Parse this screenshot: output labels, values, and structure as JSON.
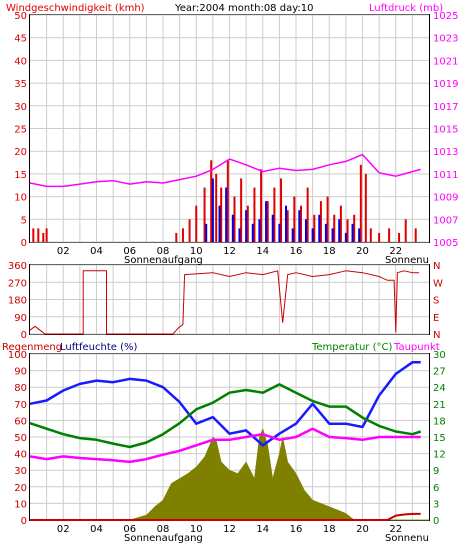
{
  "header": {
    "wind_label": "Windgeschwindigkeit (kmh)",
    "date_label": "Year:2004 month:08 day:10",
    "pressure_label": "Luftdruck (mb)"
  },
  "x_ticks": [
    "02",
    "04",
    "06",
    "08",
    "10",
    "12",
    "14",
    "16",
    "18",
    "20",
    "22"
  ],
  "sun_labels": {
    "sunrise": "Sonnenaufgang",
    "sunset": "Sonnenu"
  },
  "bottom_labels": {
    "rain": "Regenmeng",
    "humidity": "Luftfeuchte (%)",
    "temperature": "Temperatur (°C)",
    "dewpoint": "Taupunkt"
  },
  "colors": {
    "wind_speed": "#e00000",
    "wind_gust": "#0000e0",
    "pressure": "#ff00ff",
    "direction": "#cc0000",
    "humidity": "#1a1aff",
    "temperature": "#008000",
    "dewpoint": "#ff00ff",
    "rain_rate": "#808000",
    "rain_total": "#cc0000"
  },
  "chart_data": [
    {
      "type": "bar",
      "title": "Windgeschwindigkeit (kmh)",
      "xlim": [
        0,
        24
      ],
      "ylim": [
        0,
        50
      ],
      "y_ticks": [
        0,
        5,
        10,
        15,
        20,
        25,
        30,
        35,
        40,
        45,
        50
      ],
      "y2_label": "Luftdruck (mb)",
      "y2lim": [
        1005,
        1025
      ],
      "y2_ticks": [
        1005,
        1007,
        1009,
        1011,
        1013,
        1015,
        1017,
        1019,
        1021,
        1023,
        1025
      ],
      "series": [
        {
          "key": "wind_speed",
          "x": [
            0.2,
            0.5,
            0.8,
            1.0,
            8.8,
            9.2,
            9.6,
            10.0,
            10.5,
            10.9,
            11.2,
            11.5,
            11.9,
            12.3,
            12.7,
            13.1,
            13.5,
            13.9,
            14.3,
            14.7,
            15.1,
            15.5,
            15.9,
            16.3,
            16.7,
            17.1,
            17.5,
            17.9,
            18.3,
            18.7,
            19.1,
            19.5,
            19.9,
            20.2,
            20.5,
            21.0,
            21.6,
            22.2,
            22.6,
            23.2
          ],
          "values": [
            3,
            3,
            2,
            3,
            2,
            3,
            5,
            8,
            12,
            18,
            15,
            12,
            18,
            10,
            14,
            8,
            12,
            16,
            9,
            12,
            14,
            7,
            10,
            8,
            12,
            6,
            9,
            10,
            6,
            8,
            5,
            6,
            17,
            15,
            3,
            2,
            3,
            2,
            5,
            3
          ]
        },
        {
          "key": "wind_gust",
          "x": [
            10.6,
            11.0,
            11.4,
            11.8,
            12.2,
            12.6,
            13.0,
            13.4,
            13.8,
            14.2,
            14.6,
            15.0,
            15.4,
            15.8,
            16.2,
            16.6,
            17.0,
            17.4,
            17.8,
            18.2,
            18.6,
            19.0,
            19.4,
            19.8
          ],
          "values": [
            4,
            14,
            8,
            12,
            6,
            3,
            7,
            4,
            5,
            9,
            6,
            4,
            8,
            3,
            7,
            5,
            3,
            6,
            4,
            3,
            5,
            2,
            4,
            3
          ]
        },
        {
          "key": "pressure",
          "axis": "y2",
          "x": [
            0,
            1,
            2,
            3,
            4,
            5,
            6,
            7,
            8,
            9,
            10,
            11,
            12,
            13,
            14,
            15,
            16,
            17,
            18,
            19,
            20,
            21,
            22,
            23,
            23.5
          ],
          "values": [
            1010.2,
            1009.9,
            1009.9,
            1010.1,
            1010.3,
            1010.4,
            1010.1,
            1010.3,
            1010.2,
            1010.5,
            1010.8,
            1011.4,
            1012.3,
            1011.8,
            1011.2,
            1011.5,
            1011.3,
            1011.4,
            1011.8,
            1012.1,
            1012.7,
            1011.1,
            1010.8,
            1011.2,
            1011.4
          ]
        }
      ]
    },
    {
      "type": "line",
      "xlim": [
        0,
        24
      ],
      "ylim": [
        0,
        360
      ],
      "y_ticks": [
        0,
        90,
        180,
        270,
        360
      ],
      "y2_ticks": [
        "N",
        "E",
        "S",
        "W",
        "N"
      ],
      "series": [
        {
          "key": "direction",
          "x": [
            0,
            0.3,
            0.6,
            0.9,
            1.0,
            3.2,
            3.2,
            4.6,
            4.6,
            8.6,
            8.9,
            9.2,
            9.3,
            11.0,
            12.0,
            13.0,
            14.0,
            14.9,
            15.2,
            15.5,
            16.0,
            17.0,
            18.0,
            19.0,
            20.0,
            21.0,
            21.5,
            21.9,
            22.0,
            22.1,
            22.5,
            23.0,
            23.4
          ],
          "values": [
            20,
            40,
            20,
            0,
            0,
            0,
            330,
            330,
            0,
            0,
            30,
            50,
            310,
            320,
            300,
            320,
            310,
            330,
            60,
            310,
            320,
            300,
            310,
            330,
            320,
            300,
            280,
            280,
            10,
            320,
            330,
            320,
            320
          ]
        }
      ]
    },
    {
      "type": "line",
      "xlim": [
        0,
        24
      ],
      "ylim": [
        0,
        100
      ],
      "y_ticks": [
        0,
        10,
        20,
        30,
        40,
        50,
        60,
        70,
        80,
        90,
        100
      ],
      "y_tick_labels": [
        "0",
        "10",
        "20",
        "30",
        "40",
        "50",
        "60",
        "70",
        "80",
        "90",
        "100"
      ],
      "y2lim": [
        0,
        30
      ],
      "y2_ticks": [
        0,
        3,
        6,
        9,
        12,
        15,
        18,
        21,
        24,
        27,
        30
      ],
      "series": [
        {
          "key": "humidity",
          "x": [
            0,
            1,
            2,
            3,
            4,
            5,
            6,
            7,
            8,
            9,
            10,
            11,
            12,
            13,
            14,
            15,
            16,
            17,
            18,
            19,
            20,
            21,
            22,
            23,
            23.5
          ],
          "values": [
            70,
            72,
            78,
            82,
            84,
            83,
            85,
            84,
            80,
            71,
            58,
            62,
            52,
            54,
            45,
            52,
            58,
            70,
            58,
            58,
            56,
            75,
            88,
            95,
            95
          ]
        },
        {
          "key": "temperature",
          "axis": "y2",
          "x": [
            0,
            1,
            2,
            3,
            4,
            5,
            6,
            7,
            8,
            9,
            10,
            11,
            12,
            13,
            14,
            15,
            16,
            17,
            18,
            19,
            20,
            21,
            22,
            23,
            23.5
          ],
          "values": [
            17.5,
            16.5,
            15.5,
            14.8,
            14.5,
            13.8,
            13.2,
            14.0,
            15.5,
            17.5,
            20.0,
            21.2,
            23.0,
            23.5,
            23.0,
            24.5,
            23.0,
            21.5,
            20.5,
            20.5,
            18.5,
            17.0,
            16.0,
            15.5,
            16.0
          ]
        },
        {
          "key": "dewpoint",
          "axis": "y2",
          "x": [
            0,
            1,
            2,
            3,
            4,
            5,
            6,
            7,
            8,
            9,
            10,
            11,
            12,
            13,
            14,
            15,
            16,
            17,
            18,
            19,
            20,
            21,
            22,
            23,
            23.5
          ],
          "values": [
            11.5,
            11.0,
            11.5,
            11.2,
            11.0,
            10.8,
            10.5,
            11.0,
            11.8,
            12.5,
            13.5,
            14.5,
            14.5,
            15.0,
            15.5,
            14.5,
            15.0,
            16.5,
            15.0,
            14.8,
            14.5,
            15.0,
            15.0,
            15.0,
            15.0
          ]
        },
        {
          "key": "rain_rate",
          "type": "area",
          "x": [
            0,
            6.0,
            7.0,
            7.5,
            8.0,
            8.5,
            9.0,
            9.5,
            10.0,
            10.5,
            10.8,
            11.0,
            11.2,
            11.5,
            12.0,
            12.5,
            13.0,
            13.5,
            13.8,
            14.0,
            14.3,
            14.6,
            15.0,
            15.2,
            15.5,
            16.0,
            16.5,
            17.0,
            17.5,
            18.0,
            18.5,
            19.0,
            19.5,
            24.0
          ],
          "values": [
            0,
            0,
            3,
            8,
            12,
            22,
            25,
            28,
            32,
            38,
            45,
            50,
            48,
            35,
            30,
            28,
            35,
            25,
            50,
            55,
            45,
            25,
            40,
            50,
            35,
            28,
            18,
            12,
            10,
            8,
            6,
            4,
            0,
            0
          ]
        },
        {
          "key": "rain_total",
          "axis": "y2",
          "x": [
            0,
            21.5,
            22.0,
            22.5,
            23.0,
            23.5
          ],
          "values": [
            0,
            0,
            0.8,
            1.0,
            1.1,
            1.1
          ]
        }
      ]
    }
  ]
}
